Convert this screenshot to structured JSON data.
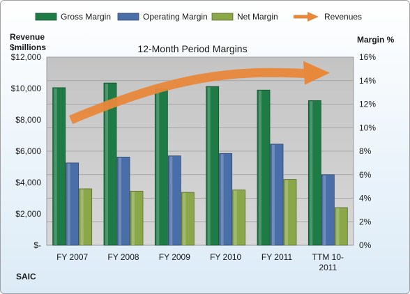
{
  "chart_data": {
    "type": "bar",
    "title": "12-Month Period Margins",
    "company": "SAIC",
    "categories": [
      "FY 2007",
      "FY 2008",
      "FY 2009",
      "FY 2010",
      "FY 2011",
      "TTM 10-2011"
    ],
    "category_lines": [
      [
        "FY 2007"
      ],
      [
        "FY 2008"
      ],
      [
        "FY 2009"
      ],
      [
        "FY 2010"
      ],
      [
        "FY 2011"
      ],
      [
        "TTM 10-",
        "2011"
      ]
    ],
    "left_axis": {
      "label_lines": [
        "Revenue",
        "$millions"
      ],
      "range": [
        0,
        12000
      ],
      "ticks": [
        0,
        2000,
        4000,
        6000,
        8000,
        10000,
        12000
      ],
      "tick_labels": [
        "$-",
        "$2,000",
        "$4,000",
        "$6,000",
        "$8,000",
        "$10,000",
        "$12,000"
      ]
    },
    "right_axis": {
      "label": "Margin %",
      "range": [
        0,
        16
      ],
      "ticks": [
        0,
        2,
        4,
        6,
        8,
        10,
        12,
        14,
        16
      ],
      "tick_labels": [
        "0%",
        "2%",
        "4%",
        "6%",
        "8%",
        "10%",
        "12%",
        "14%",
        "16%"
      ]
    },
    "series": [
      {
        "name": "Gross Margin",
        "axis": "right",
        "color": "#1e7b46",
        "values": [
          13.4,
          13.8,
          13.3,
          13.5,
          13.2,
          12.3
        ]
      },
      {
        "name": "Operating Margin",
        "axis": "right",
        "color": "#4a6fa8",
        "values": [
          7.0,
          7.5,
          7.6,
          7.8,
          8.6,
          6.0
        ]
      },
      {
        "name": "Net Margin",
        "axis": "right",
        "color": "#8aa84a",
        "values": [
          4.8,
          4.6,
          4.5,
          4.7,
          5.6,
          3.2
        ]
      }
    ],
    "revenue_series": {
      "name": "Revenues",
      "axis": "left",
      "color": "#e8883a",
      "shape": "curved-arrow"
    },
    "legend_position": "top",
    "grid": true
  }
}
